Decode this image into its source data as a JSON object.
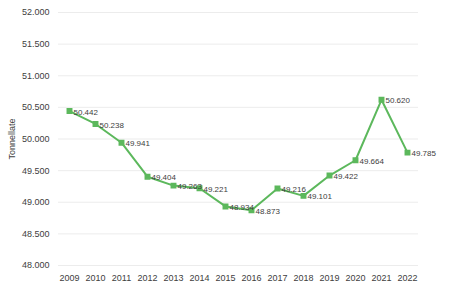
{
  "chart_data": {
    "type": "line",
    "ylabel": "Tonnellate",
    "categories": [
      "2009",
      "2010",
      "2011",
      "2012",
      "2013",
      "2014",
      "2015",
      "2016",
      "2017",
      "2018",
      "2019",
      "2020",
      "2021",
      "2022"
    ],
    "values": [
      50442,
      50238,
      49941,
      49404,
      49263,
      49221,
      48934,
      48873,
      49216,
      49101,
      49422,
      49664,
      50620,
      49785
    ],
    "value_labels": [
      "50.442",
      "50.238",
      "49.941",
      "49.404",
      "49.263",
      "49.221",
      "48.934",
      "48.873",
      "49.216",
      "49.101",
      "49.422",
      "49.664",
      "50.620",
      "49.785"
    ],
    "color": "#5cb85c",
    "marker": "square",
    "data_labels": true,
    "grid": true,
    "ylim": [
      48000,
      52000
    ],
    "yticks": [
      {
        "value": 48000,
        "label": "48.000"
      },
      {
        "value": 48500,
        "label": "48.500"
      },
      {
        "value": 49000,
        "label": "49.000"
      },
      {
        "value": 49500,
        "label": "49.500"
      },
      {
        "value": 50000,
        "label": "50.000"
      },
      {
        "value": 50500,
        "label": "50.500"
      },
      {
        "value": 51000,
        "label": "51.000"
      },
      {
        "value": 51500,
        "label": "51.500"
      },
      {
        "value": 52000,
        "label": "52.000"
      }
    ]
  }
}
